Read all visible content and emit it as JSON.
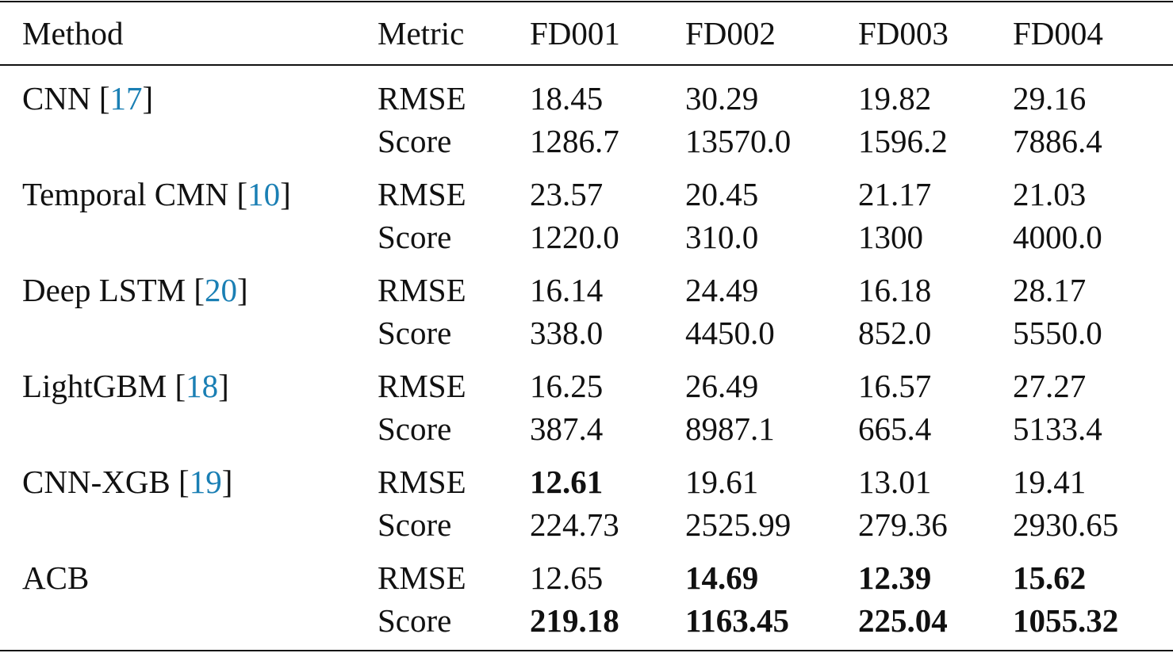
{
  "table": {
    "header": [
      "Method",
      "Metric",
      "FD001",
      "FD002",
      "FD003",
      "FD004"
    ],
    "cite_color": "#1a7fb4",
    "groups": [
      {
        "method": "CNN",
        "cite": "[17]",
        "rows": [
          {
            "metric": "RMSE",
            "values": [
              "18.45",
              "30.29",
              "19.82",
              "29.16"
            ],
            "bold": [
              false,
              false,
              false,
              false
            ]
          },
          {
            "metric": "Score",
            "values": [
              "1286.7",
              "13570.0",
              "1596.2",
              "7886.4"
            ],
            "bold": [
              false,
              false,
              false,
              false
            ]
          }
        ]
      },
      {
        "method": "Temporal CMN",
        "cite": "[10]",
        "rows": [
          {
            "metric": "RMSE",
            "values": [
              "23.57",
              "20.45",
              "21.17",
              "21.03"
            ],
            "bold": [
              false,
              false,
              false,
              false
            ]
          },
          {
            "metric": "Score",
            "values": [
              "1220.0",
              "310.0",
              "1300",
              "4000.0"
            ],
            "bold": [
              false,
              false,
              false,
              false
            ]
          }
        ]
      },
      {
        "method": "Deep LSTM",
        "cite": "[20]",
        "rows": [
          {
            "metric": "RMSE",
            "values": [
              "16.14",
              "24.49",
              "16.18",
              "28.17"
            ],
            "bold": [
              false,
              false,
              false,
              false
            ]
          },
          {
            "metric": "Score",
            "values": [
              "338.0",
              "4450.0",
              "852.0",
              "5550.0"
            ],
            "bold": [
              false,
              false,
              false,
              false
            ]
          }
        ]
      },
      {
        "method": "LightGBM",
        "cite": "[18]",
        "rows": [
          {
            "metric": "RMSE",
            "values": [
              "16.25",
              "26.49",
              "16.57",
              "27.27"
            ],
            "bold": [
              false,
              false,
              false,
              false
            ]
          },
          {
            "metric": "Score",
            "values": [
              "387.4",
              "8987.1",
              "665.4",
              "5133.4"
            ],
            "bold": [
              false,
              false,
              false,
              false
            ]
          }
        ]
      },
      {
        "method": "CNN-XGB",
        "cite": "[19]",
        "rows": [
          {
            "metric": "RMSE",
            "values": [
              "12.61",
              "19.61",
              "13.01",
              "19.41"
            ],
            "bold": [
              true,
              false,
              false,
              false
            ]
          },
          {
            "metric": "Score",
            "values": [
              "224.73",
              "2525.99",
              "279.36",
              "2930.65"
            ],
            "bold": [
              false,
              false,
              false,
              false
            ]
          }
        ]
      },
      {
        "method": "ACB",
        "rows": [
          {
            "metric": "RMSE",
            "values": [
              "12.65",
              "14.69",
              "12.39",
              "15.62"
            ],
            "bold": [
              false,
              true,
              true,
              true
            ]
          },
          {
            "metric": "Score",
            "values": [
              "219.18",
              "1163.45",
              "225.04",
              "1055.32"
            ],
            "bold": [
              true,
              true,
              true,
              true
            ]
          }
        ]
      }
    ]
  }
}
